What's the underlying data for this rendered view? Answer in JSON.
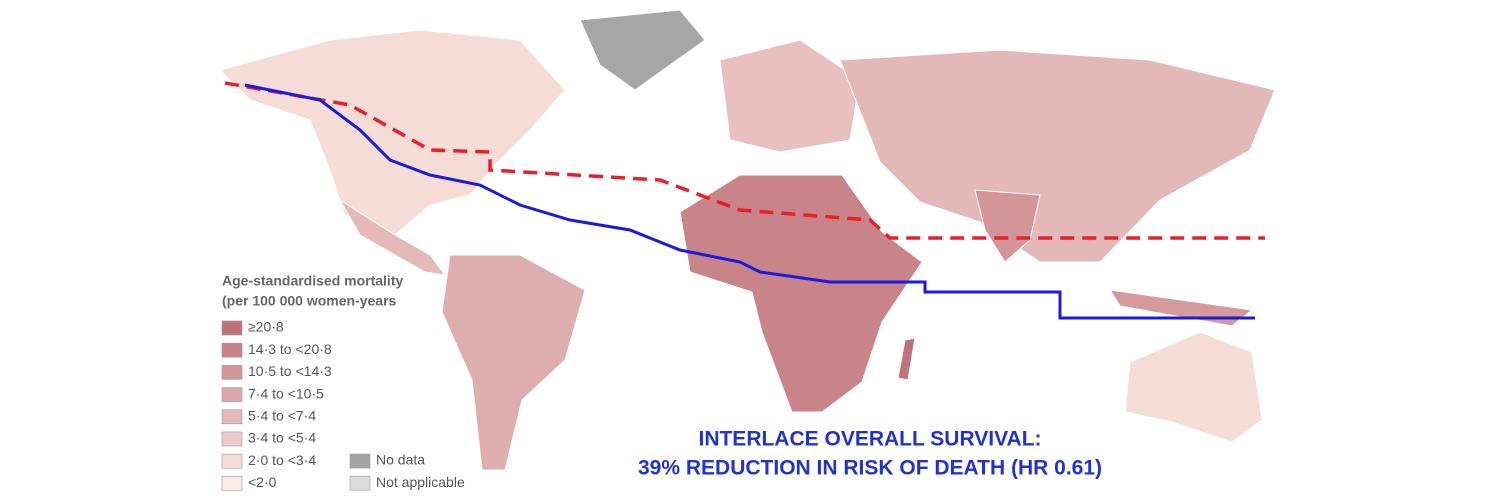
{
  "legend": {
    "title": "Age-standardised mortality",
    "subtitle": "(per 100 000 women-years",
    "items": [
      {
        "label": "≥20·8",
        "color": "#c0727a"
      },
      {
        "label": "14·3 to <20·8",
        "color": "#c98088"
      },
      {
        "label": "10·5 to <14·3",
        "color": "#d49598"
      },
      {
        "label": "7·4 to <10·5",
        "color": "#dca6a8"
      },
      {
        "label": "5·4 to <7·4",
        "color": "#e5b8b9"
      },
      {
        "label": "3·4 to <5·4",
        "color": "#edcac9"
      },
      {
        "label": "2·0 to <3·4",
        "color": "#f5dcd8"
      },
      {
        "label": "<2·0",
        "color": "#fbeae6"
      }
    ],
    "other": [
      {
        "label": "No data",
        "color": "#a3a3a3"
      },
      {
        "label": "Not applicable",
        "color": "#dcdcdc"
      }
    ]
  },
  "annotation": {
    "line1": "INTERLACE OVERALL SURVIVAL:",
    "line2": "39% REDUCTION IN RISK OF DEATH (HR 0.61)"
  }
}
